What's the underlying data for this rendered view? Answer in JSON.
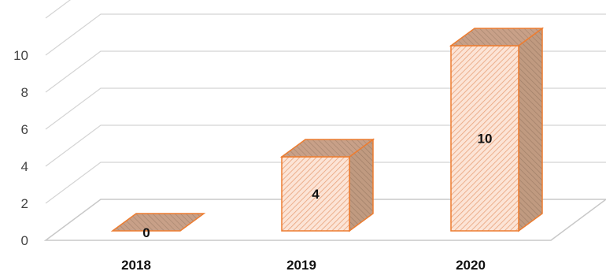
{
  "chart_data": {
    "type": "bar",
    "categories": [
      "2018",
      "2019",
      "2020"
    ],
    "values": [
      0,
      4,
      10
    ],
    "data_labels": [
      "0",
      "4",
      "10"
    ],
    "yticks": [
      "0",
      "2",
      "4",
      "6",
      "8",
      "10"
    ],
    "ylim": [
      0,
      12
    ],
    "title": "",
    "xlabel": "",
    "ylabel": "",
    "grid": true,
    "legend": "none",
    "style": "3d-column-hatched"
  },
  "colors": {
    "bar_front": "#fce4d6",
    "bar_hatch": "#e8a27a",
    "bar_side": "#c09a80",
    "bar_top": "#c8a088",
    "bar_edge": "#ed7d31",
    "grid": "#d4d4d4"
  }
}
